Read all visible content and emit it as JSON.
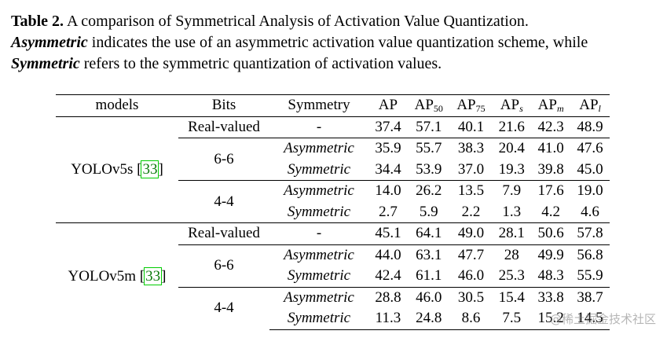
{
  "caption": {
    "label": "Table 2.",
    "text1": " A comparison of Symmetrical Analysis of Activation Value Quantization.",
    "asym_word": "Asymmetric",
    "text2": " indicates the use of an asymmetric activation value quantization scheme, while ",
    "sym_word": "Symmetric",
    "text3": " refers to the symmetric quantization of activation values."
  },
  "header": {
    "models": "models",
    "bits": "Bits",
    "symmetry": "Symmetry",
    "ap": "AP",
    "ap50": "AP",
    "ap50_sub": "50",
    "ap75": "AP",
    "ap75_sub": "75",
    "aps": "AP",
    "aps_sub": "s",
    "apm": "AP",
    "apm_sub": "m",
    "apl": "AP",
    "apl_sub": "l"
  },
  "groups": [
    {
      "model": "YOLOv5s ",
      "cite": "33",
      "rows": [
        {
          "bits": "Real-valued",
          "sym": "-",
          "v": [
            "37.4",
            "57.1",
            "40.1",
            "21.6",
            "42.3",
            "48.9"
          ]
        },
        {
          "bits": "6-6",
          "sym": "Asymmetric",
          "v": [
            "35.9",
            "55.7",
            "38.3",
            "20.4",
            "41.0",
            "47.6"
          ]
        },
        {
          "bits": "",
          "sym": "Symmetric",
          "v": [
            "34.4",
            "53.9",
            "37.0",
            "19.3",
            "39.8",
            "45.0"
          ]
        },
        {
          "bits": "4-4",
          "sym": "Asymmetric",
          "v": [
            "14.0",
            "26.2",
            "13.5",
            "7.9",
            "17.6",
            "19.0"
          ]
        },
        {
          "bits": "",
          "sym": "Symmetric",
          "v": [
            "2.7",
            "5.9",
            "2.2",
            "1.3",
            "4.2",
            "4.6"
          ]
        }
      ]
    },
    {
      "model": "YOLOv5m ",
      "cite": "33",
      "rows": [
        {
          "bits": "Real-valued",
          "sym": "-",
          "v": [
            "45.1",
            "64.1",
            "49.0",
            "28.1",
            "50.6",
            "57.8"
          ]
        },
        {
          "bits": "6-6",
          "sym": "Asymmetric",
          "v": [
            "44.0",
            "63.1",
            "47.7",
            "28",
            "49.9",
            "56.8"
          ]
        },
        {
          "bits": "",
          "sym": "Symmetric",
          "v": [
            "42.4",
            "61.1",
            "46.0",
            "25.3",
            "48.3",
            "55.9"
          ]
        },
        {
          "bits": "4-4",
          "sym": "Asymmetric",
          "v": [
            "28.8",
            "46.0",
            "30.5",
            "15.4",
            "33.8",
            "38.7"
          ]
        },
        {
          "bits": "",
          "sym": "Symmetric",
          "v": [
            "11.3",
            "24.8",
            "8.6",
            "7.5",
            "15.2",
            "14.5"
          ]
        }
      ]
    }
  ],
  "watermark": "@稀土掘金技术社区"
}
